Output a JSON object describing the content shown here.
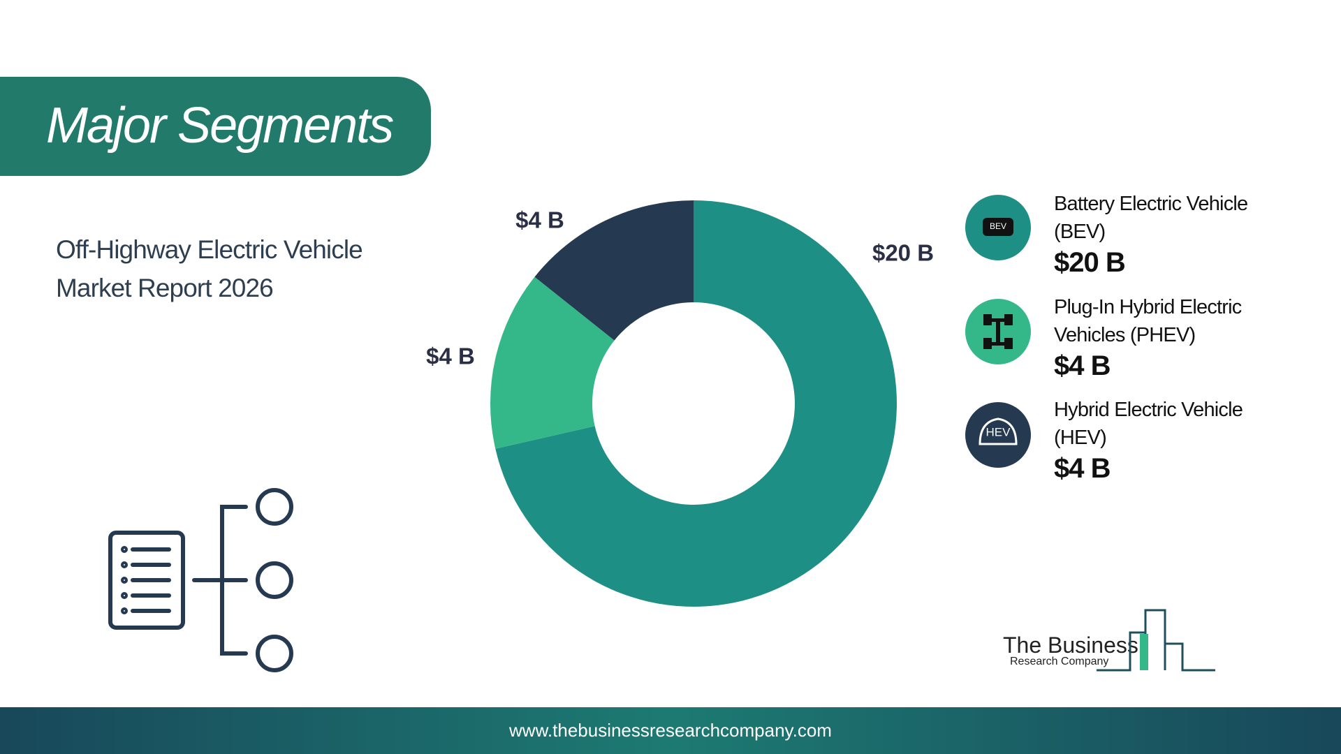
{
  "header": {
    "title": "Major Segments",
    "subtitle": "Off-Highway Electric Vehicle Market Report 2026"
  },
  "chart_data": {
    "type": "donut",
    "categories": [
      "Battery Electric Vehicle (BEV)",
      "Plug-In Hybrid Electric Vehicles (PHEV)",
      "Hybrid Electric Vehicle (HEV)"
    ],
    "values": [
      20,
      4,
      4
    ],
    "value_labels": [
      "$20 B",
      "$4 B",
      "$4 B"
    ],
    "colors": [
      "#1e8f85",
      "#35b889",
      "#253951"
    ]
  },
  "icon_texts": [
    "BEV",
    "HEV"
  ],
  "logo": {
    "line1": "The Business",
    "line2": "Research Company"
  },
  "footer": {
    "url": "www.thebusinessresearchcompany.com"
  }
}
